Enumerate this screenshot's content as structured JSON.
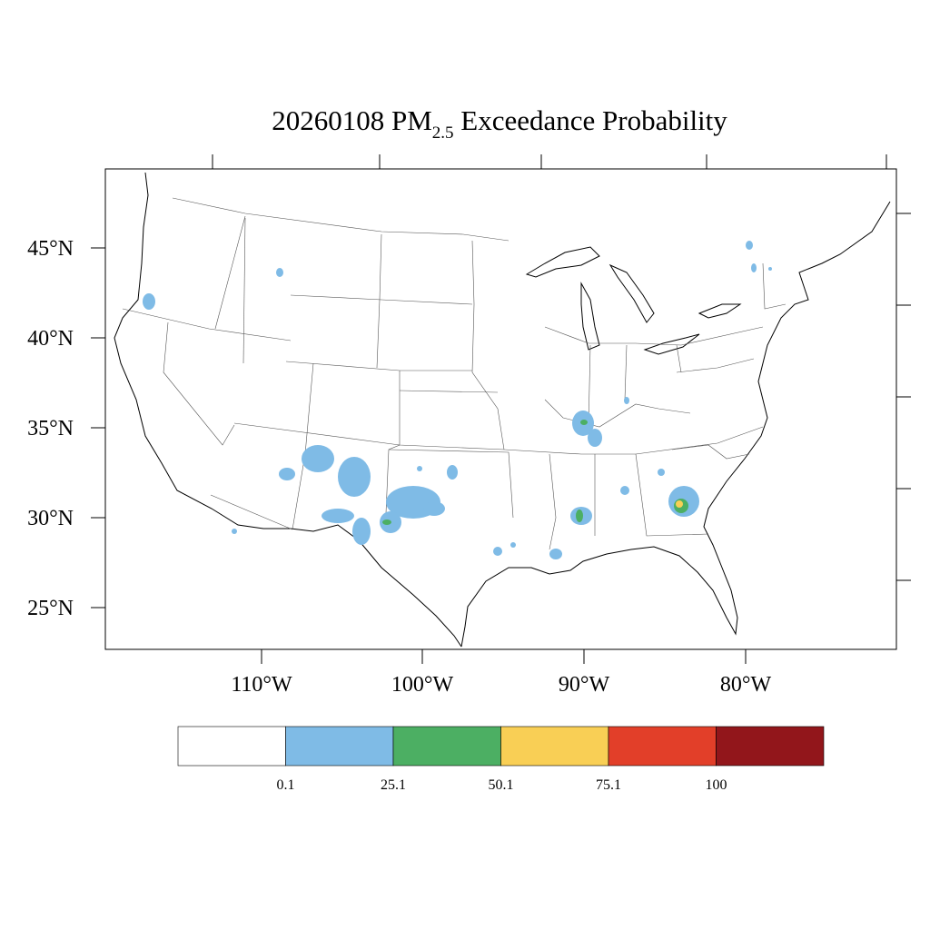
{
  "title": {
    "prefix": "20260108 PM",
    "subscript": "2.5",
    "suffix": " Exceedance Probability"
  },
  "map": {
    "lat_ticks": [
      "45°N",
      "40°N",
      "35°N",
      "30°N",
      "25°N"
    ],
    "lon_ticks": [
      "110°W",
      "100°W",
      "90°W",
      "80°W"
    ]
  },
  "colorbar": {
    "colors": [
      "#ffffff",
      "#7fbbe6",
      "#4caf63",
      "#f9cf55",
      "#e23f29",
      "#92161b"
    ],
    "labels": [
      "0.1",
      "25.1",
      "50.1",
      "75.1",
      "100"
    ]
  }
}
